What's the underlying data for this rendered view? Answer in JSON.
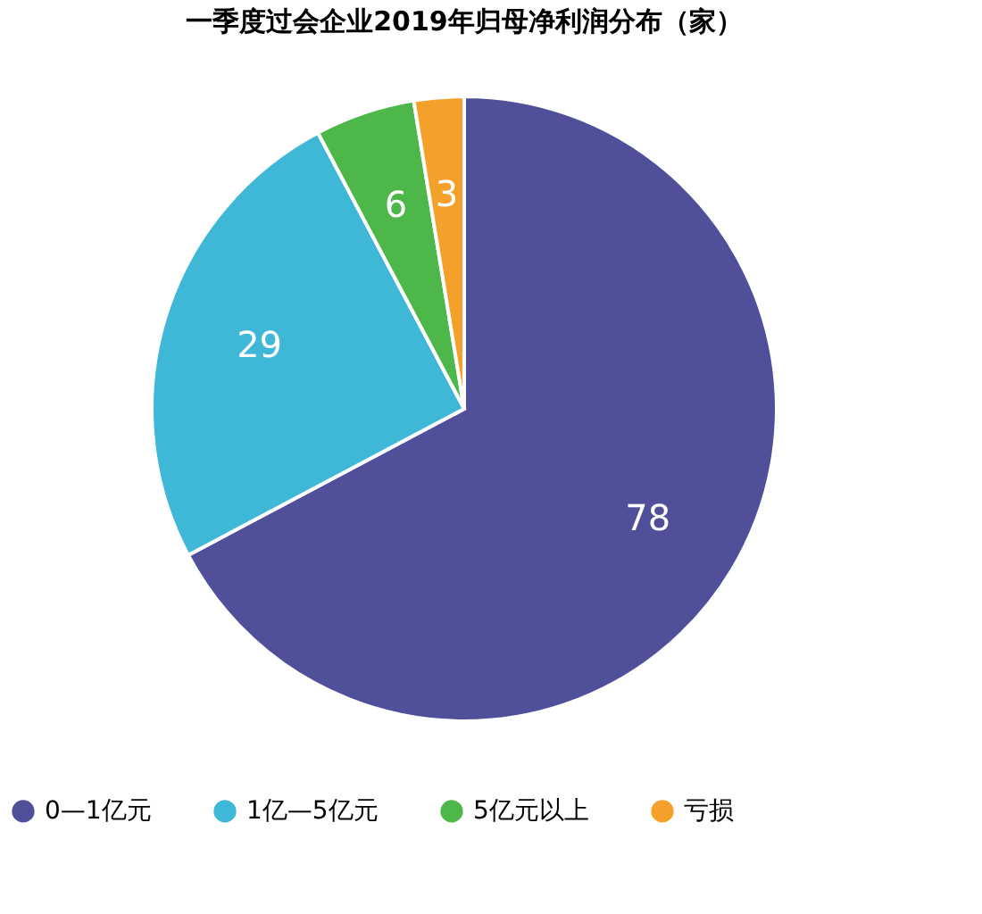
{
  "chart_data": {
    "type": "pie",
    "title": "一季度过会企业2019年归母净利润分布（家）",
    "categories": [
      "0—1亿元",
      "1亿—5亿元",
      "5亿元以上",
      "亏损"
    ],
    "values": [
      78,
      29,
      6,
      3
    ],
    "colors": [
      "#50509a",
      "#3fb8d8",
      "#4db749",
      "#f4a12b"
    ],
    "data_labels": true,
    "legend": "bottom"
  }
}
